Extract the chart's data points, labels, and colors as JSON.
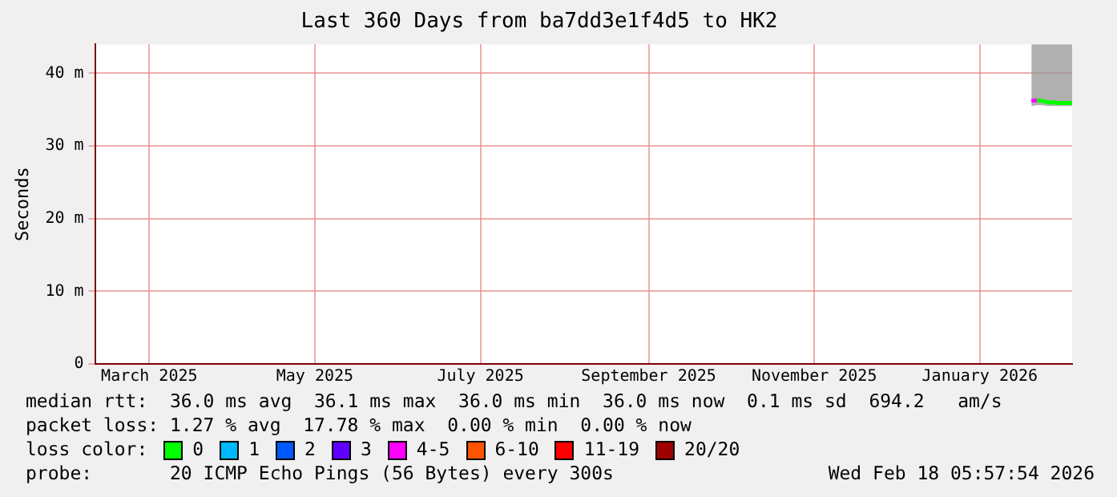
{
  "chart_data": {
    "type": "line",
    "title": "Last 360 Days from ba7dd3e1f4d5 to HK2",
    "ylabel": "Seconds",
    "legend_title": "loss color:",
    "legend": "bottom",
    "grid": true,
    "x": [
      "2026-02-03",
      "2026-02-05",
      "2026-02-07",
      "2026-02-09",
      "2026-02-11",
      "2026-02-13",
      "2026-02-15",
      "2026-02-18"
    ],
    "xlim": [
      "2025-02-23",
      "2026-02-18"
    ],
    "xticks": [
      {
        "value": "2025-03-15",
        "label": "March 2025"
      },
      {
        "value": "2025-05-15",
        "label": "May 2025"
      },
      {
        "value": "2025-07-15",
        "label": "July 2025"
      },
      {
        "value": "2025-09-15",
        "label": "September 2025"
      },
      {
        "value": "2025-11-15",
        "label": "November 2025"
      },
      {
        "value": "2026-01-15",
        "label": "January 2026"
      }
    ],
    "ylim": [
      0,
      44
    ],
    "yticks": [
      0,
      {
        "value": 10,
        "label": "10 m"
      },
      {
        "value": 20,
        "label": "20 m"
      },
      {
        "value": 30,
        "label": "30 m"
      },
      {
        "value": 40,
        "label": "40 m"
      }
    ],
    "series": [
      {
        "name": "0",
        "color": "#00ff00",
        "values": [
          null,
          36.3,
          36.2,
          36,
          36,
          35.9,
          35.9,
          35.9
        ],
        "lower": [
          35.5,
          35.6,
          35.6,
          35.5,
          35.5,
          35.5,
          35.5,
          35.5
        ],
        "upper": [
          44,
          44,
          44,
          44,
          44,
          44,
          44,
          44
        ]
      },
      {
        "name": "1",
        "color": "#00b8ff",
        "values": [
          null,
          null,
          null,
          null,
          null,
          null,
          null,
          null
        ]
      },
      {
        "name": "2",
        "color": "#0059ff",
        "values": [
          null,
          null,
          null,
          null,
          null,
          null,
          null,
          null
        ]
      },
      {
        "name": "3",
        "color": "#5e00ff",
        "values": [
          null,
          null,
          null,
          null,
          null,
          null,
          null,
          null
        ]
      },
      {
        "name": "4-5",
        "color": "#ff00ff",
        "values": [
          36.2,
          36.3,
          null,
          null,
          null,
          null,
          null,
          null
        ]
      },
      {
        "name": "6-10",
        "color": "#ff5500",
        "values": [
          null,
          null,
          null,
          null,
          null,
          null,
          null,
          null
        ]
      },
      {
        "name": "11-19",
        "color": "#ff0000",
        "values": [
          null,
          null,
          null,
          null,
          null,
          null,
          null,
          null
        ]
      },
      {
        "name": "20/20",
        "color": "#a10000",
        "values": [
          null,
          null,
          null,
          null,
          null,
          null,
          null,
          null
        ]
      }
    ],
    "annotations": [
      "median rtt:  36.0 ms avg  36.1 ms max  36.0 ms min  36.0 ms now  0.1 ms sd  694.2   am/s",
      "packet loss: 1.27 % avg  17.78 % max  0.00 % min  0.00 % now",
      "probe:       20 ICMP Echo Pings (56 Bytes) every 300s",
      "Wed Feb 18 05:57:54 2026"
    ]
  }
}
